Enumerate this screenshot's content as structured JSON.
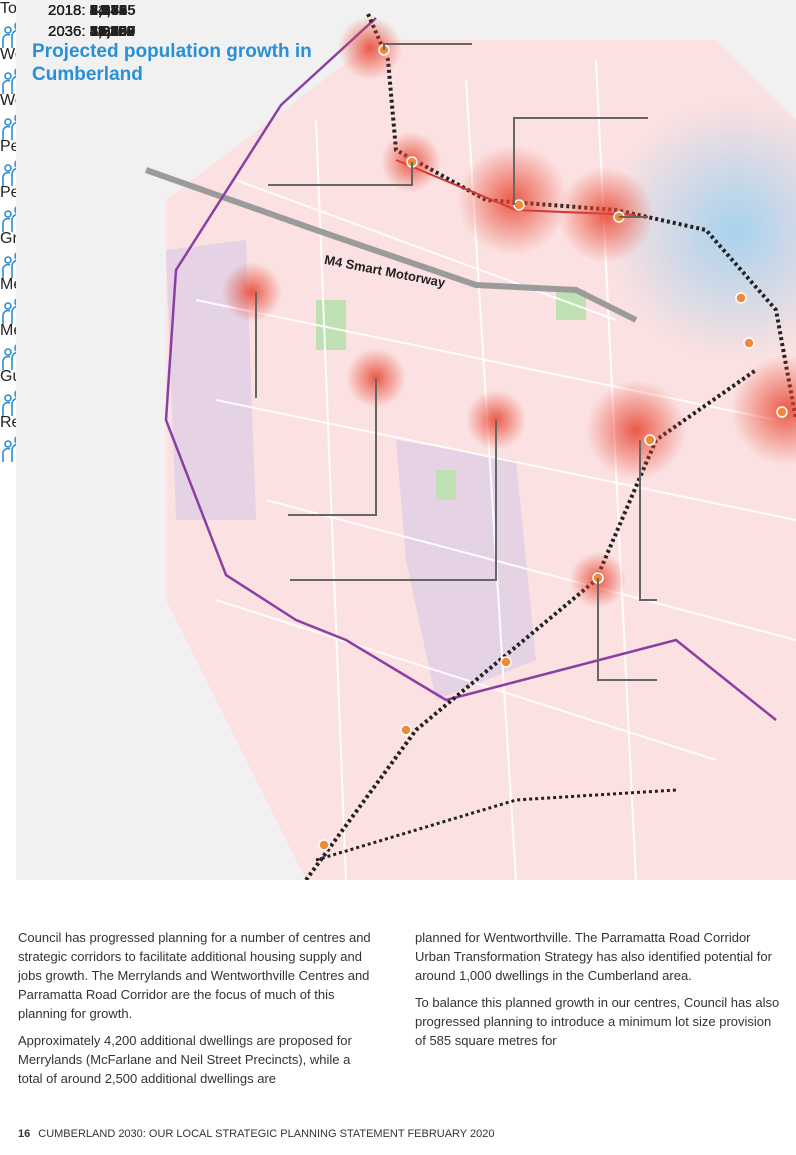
{
  "map": {
    "title": "Projected population growth in Cumberland",
    "road_label": "M4 Smart Motorway",
    "callouts": [
      {
        "name": "Toongabbie",
        "rows": [
          {
            "year": "2018:",
            "value": "8,279"
          },
          {
            "year": "2036:",
            "value": "11,306"
          }
        ]
      },
      {
        "name": "Wentworthville",
        "rows": [
          {
            "year": "2018:",
            "value": "8,084"
          },
          {
            "year": "2036:",
            "value": "14,760"
          }
        ]
      },
      {
        "name": "Westmead",
        "rows": [
          {
            "year": "2018:",
            "value": "8,475"
          },
          {
            "year": "2036:",
            "value": "11,253"
          }
        ]
      },
      {
        "name": "Pendle Hill",
        "rows": [
          {
            "year": "2018:",
            "value": "6,185"
          },
          {
            "year": "2036:",
            "value": "11,222"
          }
        ]
      },
      {
        "name": "Pemulwuy",
        "rows": [
          {
            "year": "2018:",
            "value": "5,383"
          },
          {
            "year": "2036:",
            "value": "5,208"
          }
        ]
      },
      {
        "name": "Greystanes",
        "rows": [
          {
            "year": "2018:",
            "value": "24,365"
          },
          {
            "year": "2036:",
            "value": "25,137"
          }
        ]
      },
      {
        "name": "Merrylands West",
        "rows": [
          {
            "year": "2018:",
            "value": "7,052"
          },
          {
            "year": "2036:",
            "value": "7,805"
          }
        ]
      },
      {
        "name": "Merrylands",
        "rows": [
          {
            "year": "2018:",
            "value": "24,52"
          },
          {
            "year": "2036:",
            "value": "48,89"
          }
        ]
      },
      {
        "name": "Guildford",
        "rows": [
          {
            "year": "2018:",
            "value": "31,48"
          },
          {
            "year": "2036:",
            "value": "35,49"
          }
        ]
      },
      {
        "name": "Regents Park",
        "rows": [
          {
            "year": "2018:",
            "value": "4,64"
          },
          {
            "year": "2036:",
            "value": "5,07"
          }
        ]
      }
    ]
  },
  "body": {
    "left": [
      "Council has progressed planning for a number of centres and strategic corridors to facilitate additional housing supply and jobs growth. The Merrylands and Wentworthville Centres and Parramatta Road Corridor are the focus of much of this planning for growth.",
      "Approximately 4,200 additional dwellings are proposed for Merrylands (McFarlane and Neil Street Precincts), while a total of around 2,500 additional dwellings are"
    ],
    "right": [
      "planned for Wentworthville. The Parramatta Road Corridor Urban Transformation Strategy has also identified potential for around 1,000 dwellings in the Cumberland area.",
      "To balance this planned growth in our centres, Council has also progressed planning to introduce a minimum lot size provision of 585 square metres for"
    ]
  },
  "footer": {
    "page": "16",
    "text": "CUMBERLAND 2030: OUR LOCAL STRATEGIC PLANNING STATEMENT FEBRUARY 2020"
  }
}
